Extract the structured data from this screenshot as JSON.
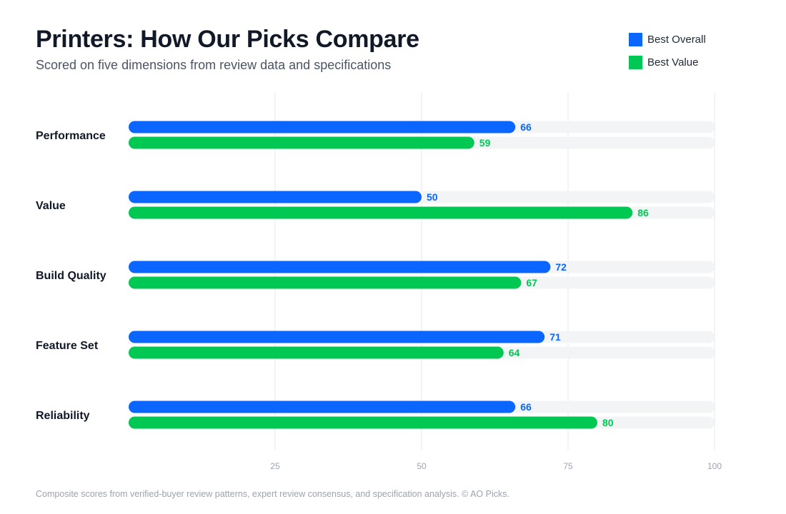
{
  "header": {
    "title": "Printers: How Our Picks Compare",
    "subtitle": "Scored on five dimensions from review data and specifications"
  },
  "footnote": "Composite scores from verified-buyer review patterns, expert review consensus, and specification analysis. © AO Picks.",
  "colors": {
    "best_overall": "#0a66ff",
    "best_value": "#00c853",
    "track": "#f3f4f6",
    "grid": "#e5e7eb"
  },
  "chart_data": {
    "type": "bar",
    "orientation": "horizontal",
    "title": "Printers: How Our Picks Compare",
    "subtitle": "Scored on five dimensions from review data and specifications",
    "categories": [
      "Performance",
      "Value",
      "Build Quality",
      "Feature Set",
      "Reliability"
    ],
    "series": [
      {
        "name": "Best Overall",
        "color": "#0a66ff",
        "values": [
          66,
          50,
          72,
          71,
          66
        ]
      },
      {
        "name": "Best Value",
        "color": "#00c853",
        "values": [
          59,
          86,
          67,
          64,
          80
        ]
      }
    ],
    "xlim": [
      0,
      100
    ],
    "xticks": [
      25,
      50,
      75,
      100
    ],
    "grid": true,
    "legend": "top-right",
    "data_labels": true
  }
}
